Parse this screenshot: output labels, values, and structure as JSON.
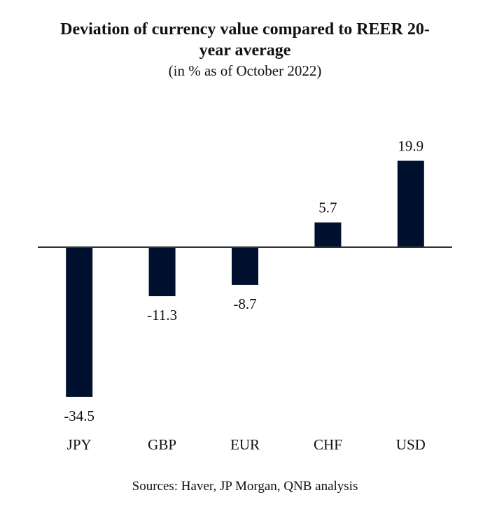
{
  "chart_data": {
    "type": "bar",
    "title": "Deviation of currency value compared to REER 20-year average",
    "title_lines": [
      "Deviation of currency value compared to REER 20-",
      "year average"
    ],
    "subtitle": "(in % as of October 2022)",
    "categories": [
      "JPY",
      "GBP",
      "EUR",
      "CHF",
      "USD"
    ],
    "values": [
      -34.5,
      -11.3,
      -8.7,
      5.7,
      19.9
    ],
    "data_labels": [
      "-34.5",
      "-11.3",
      "-8.7",
      "5.7",
      "19.9"
    ],
    "xlabel": "",
    "ylabel": "",
    "ylim": [
      -36,
      22
    ],
    "grid": false,
    "legend": "none",
    "bar_color": "#00112f",
    "axis_color": "#333333",
    "source": "Sources: Haver, JP Morgan, QNB analysis"
  }
}
